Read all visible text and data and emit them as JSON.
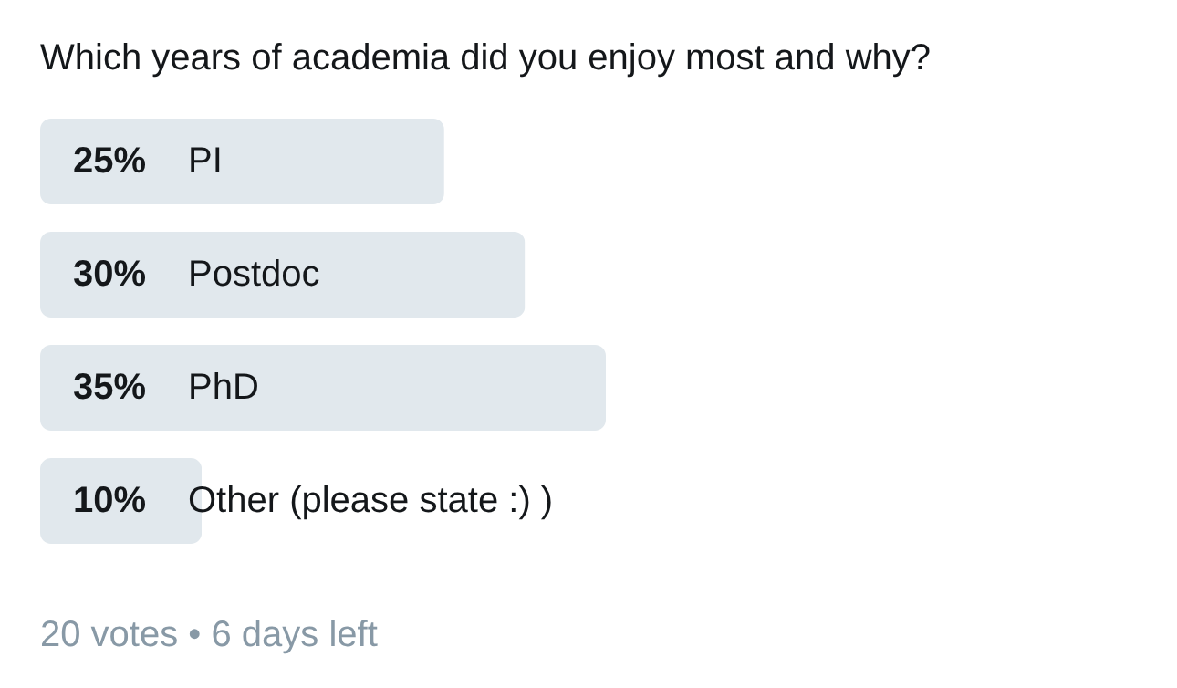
{
  "chart_data": {
    "type": "bar",
    "orientation": "horizontal",
    "title": "Which years of academia did you enjoy most and why?",
    "categories": [
      "PI",
      "Postdoc",
      "PhD",
      "Other (please state :) )"
    ],
    "values": [
      25,
      30,
      35,
      10
    ],
    "value_labels": [
      "25%",
      "30%",
      "35%",
      "10%"
    ],
    "color": "#e1e8ed",
    "annotations": [
      "20 votes • 6 days left"
    ]
  }
}
